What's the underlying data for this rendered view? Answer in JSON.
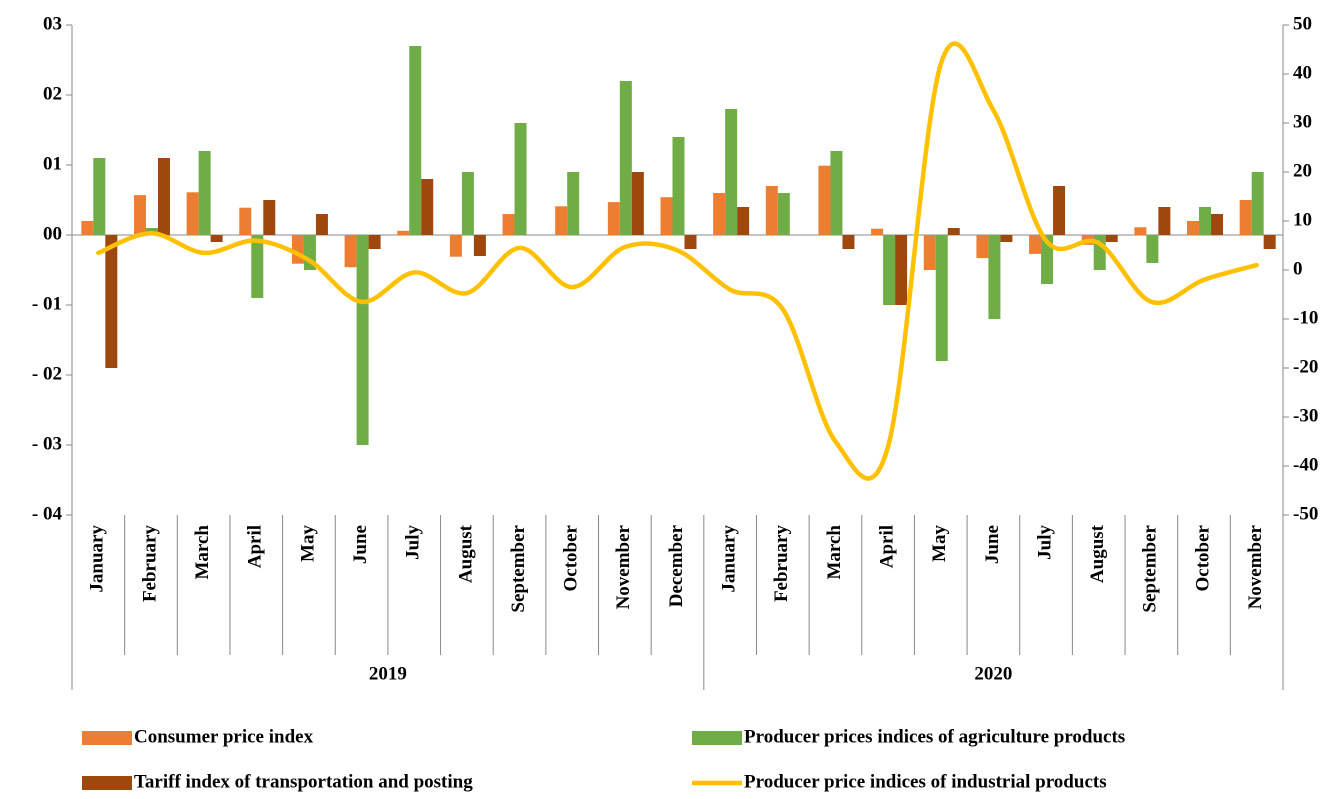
{
  "chart_data": {
    "type": "bar_line",
    "categories": [
      "January",
      "February",
      "March",
      "April",
      "May",
      "June",
      "July",
      "August",
      "September",
      "October",
      "November",
      "December",
      "January",
      "February",
      "March",
      "April",
      "May",
      "June",
      "July",
      "August",
      "September",
      "October",
      "November"
    ],
    "groups": [
      "2019",
      "2020"
    ],
    "series": [
      {
        "name": "Consumer price index",
        "type": "bar",
        "color": "#ed7d31",
        "values": [
          0.002,
          0.0057,
          0.0061,
          0.0039,
          -0.0041,
          -0.0046,
          0.0006,
          -0.0031,
          0.003,
          0.0041,
          0.0047,
          0.0054,
          0.006,
          0.007,
          0.0099,
          0.0009,
          -0.005,
          -0.0033,
          -0.0027,
          -0.0014,
          0.0011,
          0.002,
          0.005
        ]
      },
      {
        "name": "Producer prices indices of agriculture products",
        "type": "bar",
        "color": "#70ad47",
        "values": [
          0.011,
          0.001,
          0.012,
          -0.009,
          -0.005,
          -0.03,
          0.027,
          0.009,
          0.016,
          0.009,
          0.022,
          0.014,
          0.018,
          0.006,
          0.012,
          -0.01,
          -0.018,
          -0.012,
          -0.007,
          -0.005,
          -0.004,
          0.004,
          0.009
        ]
      },
      {
        "name": "Tariff index of transportation and posting",
        "type": "bar",
        "color": "#9e480e",
        "values": [
          -0.019,
          0.011,
          -0.001,
          0.005,
          0.003,
          -0.002,
          0.008,
          -0.003,
          0,
          0,
          0.009,
          -0.002,
          0.004,
          0,
          -0.002,
          -0.01,
          0.001,
          -0.001,
          0.007,
          -0.001,
          0.004,
          0.003,
          -0.002
        ]
      },
      {
        "name": "Producer price indices of industrial products",
        "type": "line",
        "axis": "y2",
        "color": "#ffc000",
        "values": [
          3.5,
          7.5,
          3.5,
          6,
          2,
          -6.5,
          -0.5,
          -4.7,
          4.5,
          -3.5,
          4.7,
          4,
          -4,
          -8,
          -35,
          -36,
          42,
          32.6,
          6,
          5.5,
          -6.5,
          -2,
          1
        ]
      }
    ],
    "ylim": [
      -0.04,
      0.03
    ],
    "yticks": [
      {
        "value": 0.03,
        "label": "03"
      },
      {
        "value": 0.02,
        "label": "02"
      },
      {
        "value": 0.01,
        "label": "01"
      },
      {
        "value": 0,
        "label": "00"
      },
      {
        "value": -0.01,
        "label": "- 01"
      },
      {
        "value": -0.02,
        "label": "- 02"
      },
      {
        "value": -0.03,
        "label": "- 03"
      },
      {
        "value": -0.04,
        "label": "- 04"
      }
    ],
    "y2lim": [
      -50,
      50
    ],
    "y2ticks": [
      50,
      40,
      30,
      20,
      10,
      0,
      -10,
      -20,
      -30,
      -40,
      -50
    ],
    "legend": "bottom"
  }
}
